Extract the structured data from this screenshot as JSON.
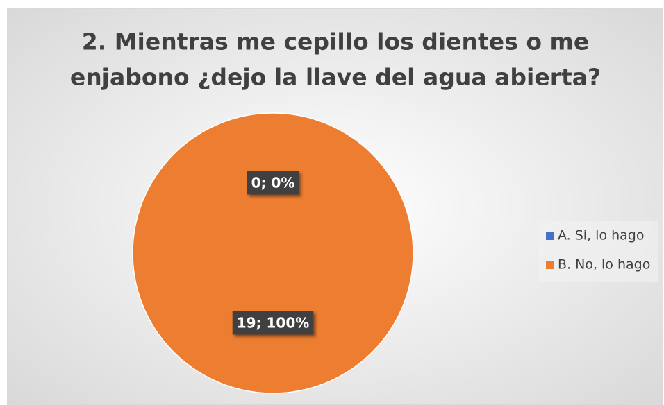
{
  "chart_data": {
    "type": "pie",
    "title": [
      "2. Mientras me cepillo los dientes o me",
      "enjabono ¿dejo la llave del agua abierta?"
    ],
    "categories": [
      "A. Si, lo hago",
      "B. No, lo hago"
    ],
    "values": [
      0,
      19
    ],
    "value_labels": [
      "0; 0%",
      "19; 100%"
    ],
    "colors": [
      "#4472c4",
      "#ed7d31"
    ],
    "legend": "right"
  }
}
